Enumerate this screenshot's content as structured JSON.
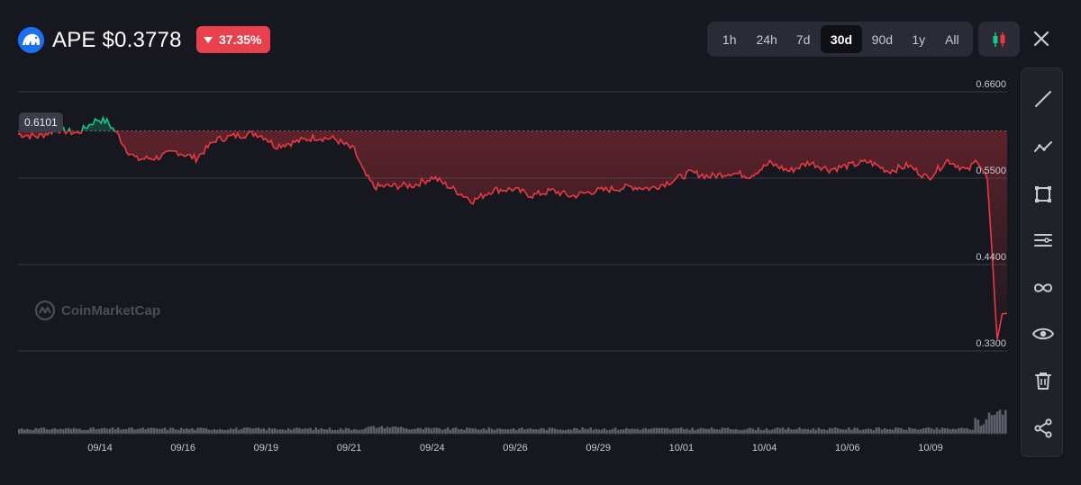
{
  "header": {
    "ticker": "APE $0.3778",
    "change": "37.35%",
    "timeframes": [
      "1h",
      "24h",
      "7d",
      "30d",
      "90d",
      "1y",
      "All"
    ],
    "active_timeframe": "30d"
  },
  "colors": {
    "background": "#17171f",
    "up": "#16c784",
    "down": "#ea3943",
    "grid": "#3a3b45",
    "badge": "#e8414d"
  },
  "watermark": "CoinMarketCap",
  "price_tag": "0.6101",
  "toolbar_icons": [
    "trend-line-icon",
    "polyline-icon",
    "rectangle-icon",
    "parallel-lines-icon",
    "infinity-icon",
    "eye-icon",
    "trash-icon",
    "share-icon"
  ],
  "chart_data": {
    "type": "line",
    "ylim": [
      0.3,
      0.68
    ],
    "y_ticks": [
      "0.6600",
      "0.5500",
      "0.4400",
      "0.3300"
    ],
    "x_ticks": [
      "09/14",
      "09/16",
      "09/19",
      "09/21",
      "09/24",
      "09/26",
      "09/29",
      "10/01",
      "10/04",
      "10/06",
      "10/09"
    ],
    "baseline": 0.6101,
    "series": [
      {
        "x": [
          0,
          2,
          4,
          6,
          8,
          9,
          10,
          11,
          12,
          14,
          16,
          18,
          20,
          22,
          24,
          25,
          26,
          28,
          30,
          32,
          34,
          35,
          36,
          38,
          40,
          42,
          44,
          46,
          48,
          50,
          52,
          54,
          56,
          58,
          60,
          62,
          64,
          66,
          68,
          70,
          72,
          74,
          76,
          78,
          80,
          82,
          84,
          86,
          88,
          90,
          92,
          94,
          96,
          97,
          98,
          99,
          99.5,
          100
        ],
        "values": [
          0.606,
          0.603,
          0.612,
          0.607,
          0.625,
          0.622,
          0.607,
          0.586,
          0.574,
          0.576,
          0.584,
          0.575,
          0.599,
          0.604,
          0.607,
          0.602,
          0.591,
          0.596,
          0.602,
          0.6,
          0.586,
          0.556,
          0.539,
          0.54,
          0.541,
          0.551,
          0.536,
          0.521,
          0.535,
          0.536,
          0.528,
          0.534,
          0.527,
          0.533,
          0.536,
          0.539,
          0.537,
          0.546,
          0.557,
          0.552,
          0.557,
          0.553,
          0.569,
          0.559,
          0.57,
          0.561,
          0.566,
          0.571,
          0.559,
          0.566,
          0.55,
          0.573,
          0.559,
          0.574,
          0.548,
          0.345,
          0.377,
          0.378
        ]
      }
    ]
  }
}
